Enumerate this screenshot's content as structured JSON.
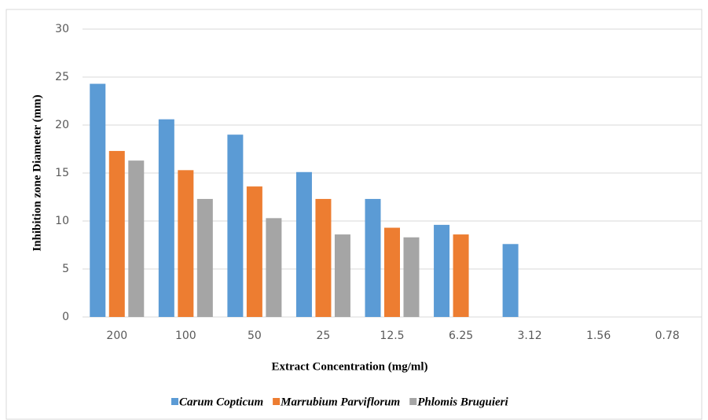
{
  "chart_data": {
    "type": "bar",
    "x_label": "Extract Concentration (mg/ml)",
    "y_label": "Inhibition zone Diameter (mm)",
    "categories": [
      "200",
      "100",
      "50",
      "25",
      "12.5",
      "6.25",
      "3.12",
      "1.56",
      "0.78"
    ],
    "series": [
      {
        "name": "Carum Copticum",
        "color": "#5b9bd5",
        "values": [
          24.3,
          20.6,
          19,
          15.1,
          12.3,
          9.6,
          7.6,
          null,
          null
        ]
      },
      {
        "name": "Marrubium Parviflorum",
        "color": "#ed7d31",
        "values": [
          17.3,
          15.3,
          13.6,
          12.3,
          9.3,
          8.6,
          null,
          null,
          null
        ]
      },
      {
        "name": "Phlomis Bruguieri",
        "color": "#a5a5a5",
        "values": [
          16.3,
          12.3,
          10.3,
          8.6,
          8.3,
          null,
          null,
          null,
          null
        ]
      }
    ],
    "ylim": [
      0,
      30
    ],
    "yticks": [
      0,
      5,
      10,
      15,
      20,
      25,
      30
    ],
    "grid": true,
    "legend": "bottom"
  }
}
